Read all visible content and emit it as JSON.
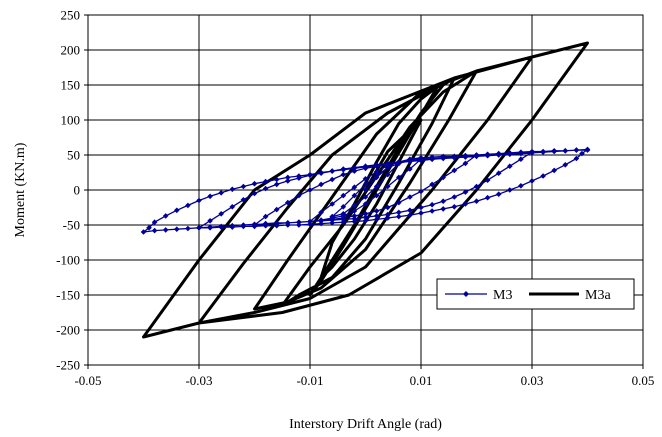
{
  "chart_data": {
    "type": "line",
    "title": "",
    "xlabel": "Interstory Drift Angle (rad)",
    "ylabel": "Moment (KN.m)",
    "xlim": [
      -0.05,
      0.05
    ],
    "ylim": [
      -250,
      250
    ],
    "xticks": [
      -0.05,
      -0.03,
      -0.01,
      0.01,
      0.03,
      0.05
    ],
    "xtick_labels": [
      "-0.05",
      "-0.03",
      "-0.01",
      "0.01",
      "0.03",
      "0.05"
    ],
    "yticks": [
      -250,
      -200,
      -150,
      -100,
      -50,
      0,
      50,
      100,
      150,
      200,
      250
    ],
    "ytick_labels": [
      "-250",
      "-200",
      "-150",
      "-100",
      "-50",
      "0",
      "50",
      "100",
      "150",
      "200",
      "250"
    ],
    "grid": true,
    "legend": "bottom-right",
    "series": [
      {
        "name": "M3",
        "color": "#000099",
        "marker": "diamond",
        "points": [
          [
            0,
            0
          ],
          [
            0.002,
            18
          ],
          [
            0.004,
            32
          ],
          [
            0.006,
            38
          ],
          [
            0.004,
            22
          ],
          [
            0.002,
            5
          ],
          [
            0,
            -10
          ],
          [
            -0.002,
            -22
          ],
          [
            -0.004,
            -34
          ],
          [
            -0.006,
            -38
          ],
          [
            -0.004,
            -24
          ],
          [
            -0.002,
            -8
          ],
          [
            0,
            8
          ],
          [
            0.002,
            20
          ],
          [
            0.004,
            32
          ],
          [
            0.006,
            38
          ],
          [
            0.008,
            42
          ],
          [
            0.01,
            44
          ],
          [
            0.008,
            30
          ],
          [
            0.006,
            18
          ],
          [
            0.004,
            5
          ],
          [
            0.002,
            -8
          ],
          [
            0,
            -20
          ],
          [
            -0.002,
            -30
          ],
          [
            -0.004,
            -37
          ],
          [
            -0.006,
            -40
          ],
          [
            -0.008,
            -43
          ],
          [
            -0.01,
            -45
          ],
          [
            -0.008,
            -32
          ],
          [
            -0.006,
            -20
          ],
          [
            -0.004,
            -8
          ],
          [
            -0.002,
            4
          ],
          [
            0,
            16
          ],
          [
            0.002,
            26
          ],
          [
            0.004,
            35
          ],
          [
            0.006,
            40
          ],
          [
            0.008,
            44
          ],
          [
            0.01,
            46
          ],
          [
            0.012,
            47
          ],
          [
            0.014,
            48
          ],
          [
            0.016,
            48
          ],
          [
            0.018,
            49
          ],
          [
            0.02,
            50
          ],
          [
            0.018,
            38
          ],
          [
            0.016,
            28
          ],
          [
            0.014,
            18
          ],
          [
            0.012,
            8
          ],
          [
            0.01,
            -2
          ],
          [
            0.008,
            -10
          ],
          [
            0.006,
            -18
          ],
          [
            0.004,
            -25
          ],
          [
            0.002,
            -30
          ],
          [
            0,
            -34
          ],
          [
            -0.002,
            -37
          ],
          [
            -0.004,
            -40
          ],
          [
            -0.006,
            -42
          ],
          [
            -0.008,
            -44
          ],
          [
            -0.01,
            -45
          ],
          [
            -0.012,
            -46
          ],
          [
            -0.014,
            -47
          ],
          [
            -0.016,
            -47
          ],
          [
            -0.018,
            -48
          ],
          [
            -0.02,
            -50
          ],
          [
            -0.018,
            -38
          ],
          [
            -0.016,
            -28
          ],
          [
            -0.014,
            -18
          ],
          [
            -0.012,
            -8
          ],
          [
            -0.01,
            0
          ],
          [
            -0.008,
            8
          ],
          [
            -0.006,
            15
          ],
          [
            -0.004,
            22
          ],
          [
            -0.002,
            27
          ],
          [
            0,
            31
          ],
          [
            0.002,
            34
          ],
          [
            0.004,
            37
          ],
          [
            0.006,
            40
          ],
          [
            0.008,
            42
          ],
          [
            0.01,
            44
          ],
          [
            0.012,
            45
          ],
          [
            0.014,
            46
          ],
          [
            0.016,
            47
          ],
          [
            0.018,
            48
          ],
          [
            0.02,
            49
          ],
          [
            0.022,
            50
          ],
          [
            0.024,
            51
          ],
          [
            0.026,
            52
          ],
          [
            0.028,
            53
          ],
          [
            0.03,
            54
          ],
          [
            0.028,
            44
          ],
          [
            0.026,
            34
          ],
          [
            0.024,
            24
          ],
          [
            0.022,
            14
          ],
          [
            0.02,
            5
          ],
          [
            0.018,
            -3
          ],
          [
            0.016,
            -10
          ],
          [
            0.014,
            -16
          ],
          [
            0.012,
            -21
          ],
          [
            0.01,
            -25
          ],
          [
            0.008,
            -29
          ],
          [
            0.006,
            -32
          ],
          [
            0.004,
            -35
          ],
          [
            0.002,
            -37
          ],
          [
            0,
            -39
          ],
          [
            -0.002,
            -41
          ],
          [
            -0.004,
            -42
          ],
          [
            -0.006,
            -43
          ],
          [
            -0.008,
            -44
          ],
          [
            -0.01,
            -45
          ],
          [
            -0.012,
            -46
          ],
          [
            -0.014,
            -47
          ],
          [
            -0.016,
            -48
          ],
          [
            -0.018,
            -49
          ],
          [
            -0.02,
            -49
          ],
          [
            -0.022,
            -50
          ],
          [
            -0.024,
            -51
          ],
          [
            -0.026,
            -52
          ],
          [
            -0.028,
            -53
          ],
          [
            -0.03,
            -54
          ],
          [
            -0.028,
            -44
          ],
          [
            -0.026,
            -34
          ],
          [
            -0.024,
            -24
          ],
          [
            -0.022,
            -14
          ],
          [
            -0.02,
            -5
          ],
          [
            -0.018,
            2
          ],
          [
            -0.016,
            8
          ],
          [
            -0.014,
            13
          ],
          [
            -0.012,
            17
          ],
          [
            -0.01,
            21
          ],
          [
            -0.008,
            24
          ],
          [
            -0.006,
            27
          ],
          [
            -0.004,
            30
          ],
          [
            -0.002,
            32
          ],
          [
            0,
            34
          ],
          [
            0.002,
            36
          ],
          [
            0.004,
            38
          ],
          [
            0.006,
            40
          ],
          [
            0.008,
            41
          ],
          [
            0.01,
            42
          ],
          [
            0.012,
            44
          ],
          [
            0.014,
            45
          ],
          [
            0.016,
            46
          ],
          [
            0.018,
            47
          ],
          [
            0.02,
            48
          ],
          [
            0.022,
            49
          ],
          [
            0.024,
            50
          ],
          [
            0.026,
            51
          ],
          [
            0.028,
            52
          ],
          [
            0.03,
            53
          ],
          [
            0.032,
            54
          ],
          [
            0.034,
            55
          ],
          [
            0.036,
            56
          ],
          [
            0.038,
            57
          ],
          [
            0.04,
            58
          ],
          [
            0.039,
            52
          ],
          [
            0.038,
            45
          ],
          [
            0.036,
            36
          ],
          [
            0.034,
            28
          ],
          [
            0.032,
            20
          ],
          [
            0.03,
            13
          ],
          [
            0.028,
            6
          ],
          [
            0.026,
            0
          ],
          [
            0.024,
            -6
          ],
          [
            0.022,
            -11
          ],
          [
            0.02,
            -16
          ],
          [
            0.018,
            -20
          ],
          [
            0.016,
            -24
          ],
          [
            0.014,
            -27
          ],
          [
            0.012,
            -30
          ],
          [
            0.01,
            -33
          ],
          [
            0.008,
            -36
          ],
          [
            0.006,
            -38
          ],
          [
            0.004,
            -40
          ],
          [
            0.002,
            -42
          ],
          [
            0,
            -44
          ],
          [
            -0.002,
            -45
          ],
          [
            -0.004,
            -46
          ],
          [
            -0.006,
            -47
          ],
          [
            -0.008,
            -48
          ],
          [
            -0.01,
            -49
          ],
          [
            -0.012,
            -50
          ],
          [
            -0.014,
            -50
          ],
          [
            -0.016,
            -51
          ],
          [
            -0.018,
            -51
          ],
          [
            -0.02,
            -52
          ],
          [
            -0.022,
            -52
          ],
          [
            -0.024,
            -53
          ],
          [
            -0.026,
            -53
          ],
          [
            -0.028,
            -54
          ],
          [
            -0.03,
            -54
          ],
          [
            -0.032,
            -55
          ],
          [
            -0.034,
            -56
          ],
          [
            -0.036,
            -57
          ],
          [
            -0.038,
            -58
          ],
          [
            -0.04,
            -60
          ],
          [
            -0.039,
            -54
          ],
          [
            -0.038,
            -46
          ],
          [
            -0.036,
            -37
          ],
          [
            -0.034,
            -29
          ],
          [
            -0.032,
            -22
          ],
          [
            -0.03,
            -15
          ],
          [
            -0.028,
            -9
          ],
          [
            -0.026,
            -4
          ],
          [
            -0.024,
            1
          ],
          [
            -0.022,
            5
          ],
          [
            -0.02,
            9
          ],
          [
            -0.018,
            12
          ],
          [
            -0.016,
            15
          ],
          [
            -0.014,
            18
          ],
          [
            -0.012,
            20
          ],
          [
            -0.01,
            22
          ],
          [
            -0.008,
            25
          ],
          [
            -0.006,
            27
          ],
          [
            -0.004,
            29
          ],
          [
            -0.002,
            31
          ],
          [
            0,
            33
          ],
          [
            0.002,
            35
          ],
          [
            0.004,
            37
          ],
          [
            0.006,
            39
          ],
          [
            0.008,
            41
          ],
          [
            0.01,
            42
          ],
          [
            0.012,
            44
          ],
          [
            0.014,
            46
          ],
          [
            0.016,
            48
          ],
          [
            0.018,
            49
          ],
          [
            0.02,
            50
          ],
          [
            0.022,
            51
          ],
          [
            0.024,
            52
          ],
          [
            0.026,
            53
          ],
          [
            0.028,
            54
          ],
          [
            0.03,
            55
          ],
          [
            0.032,
            55
          ],
          [
            0.034,
            56
          ],
          [
            0.036,
            56
          ],
          [
            0.038,
            57
          ],
          [
            0.04,
            57
          ]
        ]
      },
      {
        "name": "M3a",
        "color": "#000000",
        "marker": "none",
        "points": [
          [
            0,
            0
          ],
          [
            0.004,
            55
          ],
          [
            0.006,
            70
          ],
          [
            0.008,
            85
          ],
          [
            0.01,
            100
          ],
          [
            0.006,
            40
          ],
          [
            0.002,
            -20
          ],
          [
            -0.002,
            -70
          ],
          [
            -0.006,
            -110
          ],
          [
            -0.008,
            -125
          ],
          [
            -0.006,
            -75
          ],
          [
            -0.002,
            -20
          ],
          [
            0.002,
            40
          ],
          [
            0.006,
            95
          ],
          [
            0.01,
            130
          ],
          [
            0.013,
            148
          ],
          [
            0.008,
            80
          ],
          [
            0.002,
            0
          ],
          [
            -0.004,
            -80
          ],
          [
            -0.008,
            -130
          ],
          [
            -0.01,
            -150
          ],
          [
            -0.006,
            -100
          ],
          [
            -0.002,
            -50
          ],
          [
            0.002,
            5
          ],
          [
            0.006,
            60
          ],
          [
            0.01,
            110
          ],
          [
            0.014,
            150
          ],
          [
            0.016,
            160
          ],
          [
            0.012,
            95
          ],
          [
            0.006,
            10
          ],
          [
            0,
            -70
          ],
          [
            -0.006,
            -125
          ],
          [
            -0.012,
            -150
          ],
          [
            -0.015,
            -165
          ],
          [
            -0.01,
            -110
          ],
          [
            -0.004,
            -50
          ],
          [
            0.002,
            20
          ],
          [
            0.008,
            90
          ],
          [
            0.014,
            140
          ],
          [
            0.02,
            170
          ],
          [
            0.015,
            100
          ],
          [
            0.008,
            10
          ],
          [
            0,
            -85
          ],
          [
            -0.008,
            -140
          ],
          [
            -0.014,
            -160
          ],
          [
            -0.02,
            -170
          ],
          [
            -0.014,
            -100
          ],
          [
            -0.006,
            -10
          ],
          [
            0.002,
            80
          ],
          [
            0.01,
            140
          ],
          [
            0.02,
            170
          ],
          [
            0.03,
            190
          ],
          [
            0.022,
            100
          ],
          [
            0.012,
            0
          ],
          [
            0,
            -110
          ],
          [
            -0.01,
            -155
          ],
          [
            -0.02,
            -175
          ],
          [
            -0.03,
            -190
          ],
          [
            -0.022,
            -105
          ],
          [
            -0.014,
            -25
          ],
          [
            -0.006,
            50
          ],
          [
            0.004,
            110
          ],
          [
            0.016,
            160
          ],
          [
            0.03,
            190
          ],
          [
            0.04,
            210
          ],
          [
            0.03,
            100
          ],
          [
            0.02,
            0
          ],
          [
            0.01,
            -90
          ],
          [
            -0.003,
            -150
          ],
          [
            -0.015,
            -175
          ],
          [
            -0.03,
            -190
          ],
          [
            -0.04,
            -210
          ],
          [
            -0.03,
            -100
          ],
          [
            -0.02,
            0
          ],
          [
            -0.01,
            50
          ],
          [
            0,
            110
          ],
          [
            0.016,
            160
          ],
          [
            0.03,
            190
          ],
          [
            0.04,
            210
          ]
        ]
      }
    ]
  }
}
